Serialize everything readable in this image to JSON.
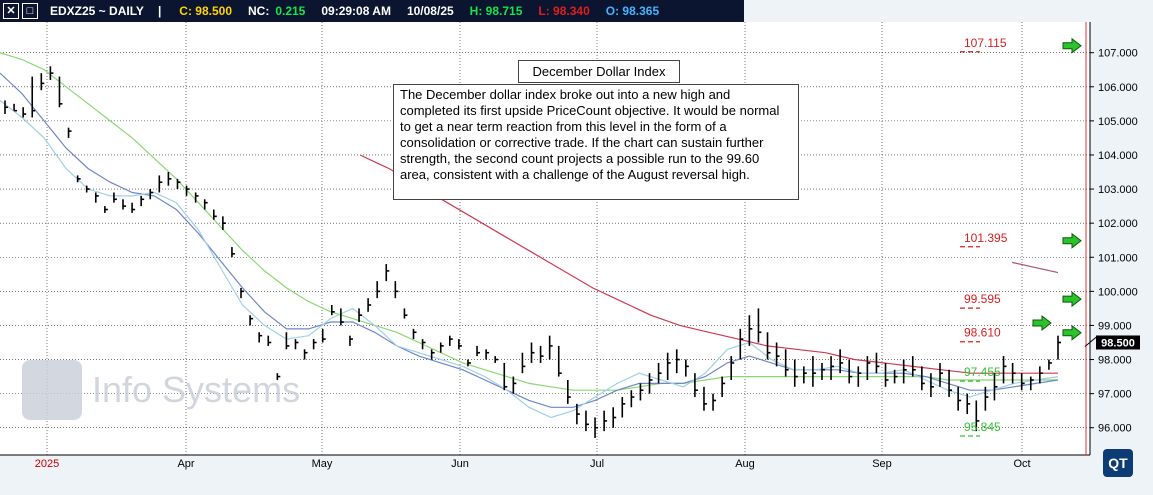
{
  "toolbar": {
    "close_label": "✕",
    "restore_label": "□",
    "symbol": "EDXZ25 ~ DAILY",
    "sep": "|",
    "close": "C: 98.500",
    "net_change_label": "NC:",
    "net_change": "0.215",
    "time": "09:29:08 AM",
    "date": "10/08/25",
    "high": "H: 98.715",
    "low": "L: 98.340",
    "open": "O: 98.365",
    "colors": {
      "close": "#ffd400",
      "net_change": "#16e34a",
      "high": "#16e34a",
      "low": "#e01e1e",
      "open": "#44b3ff"
    }
  },
  "annotation": {
    "title": "December Dollar Index",
    "body": "The December dollar index broke out into a new high and completed its first upside PriceCount objective.  It would be normal to get a near term reaction from this level in the form of a consolidation or corrective trade. If the chart can sustain further strength, the second count projects a possible run to the 99.60 area, consistent with a challenge of the August reversal high."
  },
  "watermark": "Info Systems",
  "logo": "QT",
  "chart_data": {
    "type": "ohlc",
    "y_axis": {
      "min": 95.2,
      "max": 107.9,
      "ticks": [
        "96.000",
        "97.000",
        "98.000",
        "99.000",
        "100.000",
        "101.000",
        "102.000",
        "103.000",
        "104.000",
        "105.000",
        "106.000",
        "107.000"
      ]
    },
    "x_axis": {
      "labels": [
        "2025",
        "Apr",
        "May",
        "Jun",
        "Jul",
        "Aug",
        "Sep",
        "Oct"
      ],
      "label_colors": [
        "#c00000",
        "#000",
        "#000",
        "#000",
        "#000",
        "#000",
        "#000",
        "#000"
      ]
    },
    "last_price_label": "98.500",
    "targets": [
      {
        "label": "107.115",
        "value": 107.115,
        "color": "#d62020",
        "arrow": true
      },
      {
        "label": "101.395",
        "value": 101.395,
        "color": "#d62020",
        "arrow": true
      },
      {
        "label": "99.595",
        "value": 99.595,
        "color": "#d62020",
        "arrow": true
      },
      {
        "label": "98.610",
        "value": 98.61,
        "color": "#d62020",
        "arrow": true
      },
      {
        "label": "97.455",
        "value": 97.455,
        "color": "#33c233",
        "arrow": false
      },
      {
        "label": "95.845",
        "value": 95.845,
        "color": "#33c233",
        "arrow": false
      }
    ],
    "bars": [
      [
        105.6,
        105.2,
        105.4
      ],
      [
        105.5,
        105.3,
        105.3
      ],
      [
        105.4,
        105.1,
        105.2
      ],
      [
        106.3,
        105.1,
        105.3
      ],
      [
        106.4,
        105.9,
        106.1
      ],
      [
        106.6,
        106.2,
        106.4
      ],
      [
        106.3,
        105.4,
        105.5
      ],
      [
        104.8,
        104.5,
        104.7
      ],
      [
        103.4,
        103.2,
        103.3
      ],
      [
        103.1,
        102.9,
        103.0
      ],
      [
        102.9,
        102.6,
        102.8
      ],
      [
        102.5,
        102.3,
        102.4
      ],
      [
        102.9,
        102.6,
        102.7
      ],
      [
        102.7,
        102.4,
        102.5
      ],
      [
        102.6,
        102.3,
        102.4
      ],
      [
        102.8,
        102.5,
        102.7
      ],
      [
        103.0,
        102.7,
        102.9
      ],
      [
        103.4,
        102.9,
        103.2
      ],
      [
        103.5,
        103.1,
        103.3
      ],
      [
        103.3,
        103.0,
        103.2
      ],
      [
        103.1,
        102.8,
        103.0
      ],
      [
        102.9,
        102.6,
        102.8
      ],
      [
        102.7,
        102.4,
        102.6
      ],
      [
        102.4,
        102.1,
        102.2
      ],
      [
        102.2,
        101.8,
        102.0
      ],
      [
        101.3,
        101.0,
        101.1
      ],
      [
        100.1,
        99.8,
        100.0
      ],
      [
        99.3,
        99.0,
        99.2
      ],
      [
        98.8,
        98.5,
        98.7
      ],
      [
        98.7,
        98.4,
        98.5
      ],
      [
        97.6,
        97.4,
        97.5
      ],
      [
        98.8,
        98.3,
        98.4
      ],
      [
        98.6,
        98.3,
        98.5
      ],
      [
        98.3,
        98.0,
        98.2
      ],
      [
        98.6,
        98.3,
        98.5
      ],
      [
        98.9,
        98.5,
        98.6
      ],
      [
        99.6,
        99.3,
        99.4
      ],
      [
        99.5,
        99.0,
        99.1
      ],
      [
        98.7,
        98.4,
        98.6
      ],
      [
        99.5,
        99.1,
        99.3
      ],
      [
        99.8,
        99.4,
        99.6
      ],
      [
        100.3,
        99.8,
        100.0
      ],
      [
        100.8,
        100.3,
        100.6
      ],
      [
        100.3,
        99.8,
        100.0
      ],
      [
        99.5,
        99.2,
        99.3
      ],
      [
        98.9,
        98.6,
        98.8
      ],
      [
        98.6,
        98.3,
        98.5
      ],
      [
        98.3,
        98.0,
        98.2
      ],
      [
        98.5,
        98.2,
        98.4
      ],
      [
        98.7,
        98.4,
        98.6
      ],
      [
        98.6,
        98.3,
        98.4
      ],
      [
        98.0,
        97.8,
        97.9
      ],
      [
        98.4,
        98.1,
        98.2
      ],
      [
        98.3,
        98.0,
        98.2
      ],
      [
        98.1,
        97.9,
        98.0
      ],
      [
        97.9,
        97.1,
        97.2
      ],
      [
        97.5,
        97.0,
        97.3
      ],
      [
        98.2,
        97.6,
        97.8
      ],
      [
        98.5,
        97.9,
        98.2
      ],
      [
        98.4,
        97.9,
        98.1
      ],
      [
        98.7,
        98.0,
        98.4
      ],
      [
        98.4,
        97.5,
        97.6
      ],
      [
        97.4,
        96.7,
        96.9
      ],
      [
        96.7,
        96.1,
        96.4
      ],
      [
        96.5,
        95.9,
        96.1
      ],
      [
        96.3,
        95.7,
        96.0
      ],
      [
        96.5,
        95.9,
        96.2
      ],
      [
        96.6,
        96.0,
        96.3
      ],
      [
        96.9,
        96.3,
        96.7
      ],
      [
        97.1,
        96.6,
        96.9
      ],
      [
        97.3,
        96.8,
        97.1
      ],
      [
        97.6,
        97.0,
        97.4
      ],
      [
        97.9,
        97.3,
        97.6
      ],
      [
        98.2,
        97.4,
        97.9
      ],
      [
        98.3,
        97.6,
        98.0
      ],
      [
        98.0,
        97.5,
        97.8
      ],
      [
        97.6,
        96.9,
        97.1
      ],
      [
        97.2,
        96.5,
        96.7
      ],
      [
        97.0,
        96.5,
        96.8
      ],
      [
        97.5,
        96.9,
        97.3
      ],
      [
        98.1,
        97.4,
        97.9
      ],
      [
        98.9,
        98.0,
        98.6
      ],
      [
        99.3,
        98.4,
        98.9
      ],
      [
        99.5,
        98.5,
        98.8
      ],
      [
        98.8,
        98.0,
        98.2
      ],
      [
        98.5,
        97.8,
        98.1
      ],
      [
        98.3,
        97.5,
        97.7
      ],
      [
        98.0,
        97.2,
        97.5
      ],
      [
        97.8,
        97.3,
        97.6
      ],
      [
        98.1,
        97.2,
        97.6
      ],
      [
        97.9,
        97.4,
        97.7
      ],
      [
        98.1,
        97.4,
        97.8
      ],
      [
        98.3,
        97.6,
        97.9
      ],
      [
        98.0,
        97.3,
        97.5
      ],
      [
        97.8,
        97.2,
        97.6
      ],
      [
        98.1,
        97.4,
        97.9
      ],
      [
        98.2,
        97.6,
        97.8
      ],
      [
        97.9,
        97.2,
        97.4
      ],
      [
        97.7,
        97.3,
        97.5
      ],
      [
        98.0,
        97.3,
        97.7
      ],
      [
        98.1,
        97.5,
        97.7
      ],
      [
        97.8,
        97.1,
        97.3
      ],
      [
        97.6,
        96.9,
        97.2
      ],
      [
        97.9,
        97.2,
        97.6
      ],
      [
        97.7,
        96.9,
        97.1
      ],
      [
        97.2,
        96.5,
        96.8
      ],
      [
        97.0,
        96.4,
        96.7
      ],
      [
        96.8,
        95.9,
        96.2
      ],
      [
        97.2,
        96.5,
        96.9
      ],
      [
        97.6,
        96.8,
        97.2
      ],
      [
        98.1,
        97.3,
        97.8
      ],
      [
        97.9,
        97.3,
        97.6
      ],
      [
        97.6,
        97.1,
        97.3
      ],
      [
        97.5,
        97.1,
        97.4
      ],
      [
        97.8,
        97.3,
        97.6
      ],
      [
        98.0,
        97.7,
        97.9
      ],
      [
        98.7,
        98.0,
        98.5
      ]
    ],
    "ma_short": [
      105.6,
      105.1,
      104.5,
      103.6,
      103.0,
      102.8,
      102.8,
      102.9,
      102.6,
      101.8,
      100.7,
      99.6,
      99.0,
      98.6,
      98.7,
      99.2,
      99.5,
      99.0,
      98.4,
      98.2,
      98.0,
      97.8,
      97.5,
      97.1,
      96.6,
      96.3,
      96.5,
      96.9,
      97.3,
      97.6,
      97.4,
      97.2,
      97.6,
      98.3,
      98.5,
      98.0,
      97.7,
      97.7,
      97.8,
      97.6,
      97.6,
      97.7,
      97.4,
      97.1,
      96.9,
      97.1,
      97.3,
      97.4,
      97.5
    ],
    "ma_mid": [
      106.4,
      105.8,
      105.0,
      104.2,
      103.6,
      103.2,
      102.9,
      102.8,
      102.4,
      101.7,
      100.9,
      100.1,
      99.4,
      98.9,
      98.9,
      99.1,
      99.1,
      98.8,
      98.4,
      98.1,
      97.9,
      97.7,
      97.4,
      97.1,
      96.8,
      96.6,
      96.6,
      96.8,
      97.1,
      97.3,
      97.3,
      97.3,
      97.5,
      97.9,
      98.1,
      97.9,
      97.7,
      97.7,
      97.7,
      97.6,
      97.6,
      97.6,
      97.5,
      97.3,
      97.1,
      97.1,
      97.2,
      97.3,
      97.4
    ],
    "ma_long": [
      107.0,
      106.8,
      106.5,
      106.0,
      105.5,
      105.0,
      104.5,
      103.9,
      103.3,
      102.6,
      101.9,
      101.2,
      100.6,
      100.1,
      99.7,
      99.4,
      99.2,
      99.0,
      98.8,
      98.5,
      98.2,
      97.9,
      97.7,
      97.5,
      97.3,
      97.2,
      97.1,
      97.1,
      97.1,
      97.2,
      97.3,
      97.3,
      97.4,
      97.5,
      97.5,
      97.5,
      97.5,
      97.5,
      97.5,
      97.5,
      97.5,
      97.5,
      97.5,
      97.4,
      97.4,
      97.4,
      97.4,
      97.4,
      97.4
    ],
    "ma_red": [
      104.0,
      103.6,
      103.1,
      102.6,
      102.1,
      101.6,
      101.1,
      100.6,
      100.1,
      99.7,
      99.3,
      99.0,
      98.8,
      98.6,
      98.4,
      98.3,
      98.2,
      98.0,
      97.9,
      97.8,
      97.7,
      97.6,
      97.6,
      97.6,
      97.6
    ]
  }
}
